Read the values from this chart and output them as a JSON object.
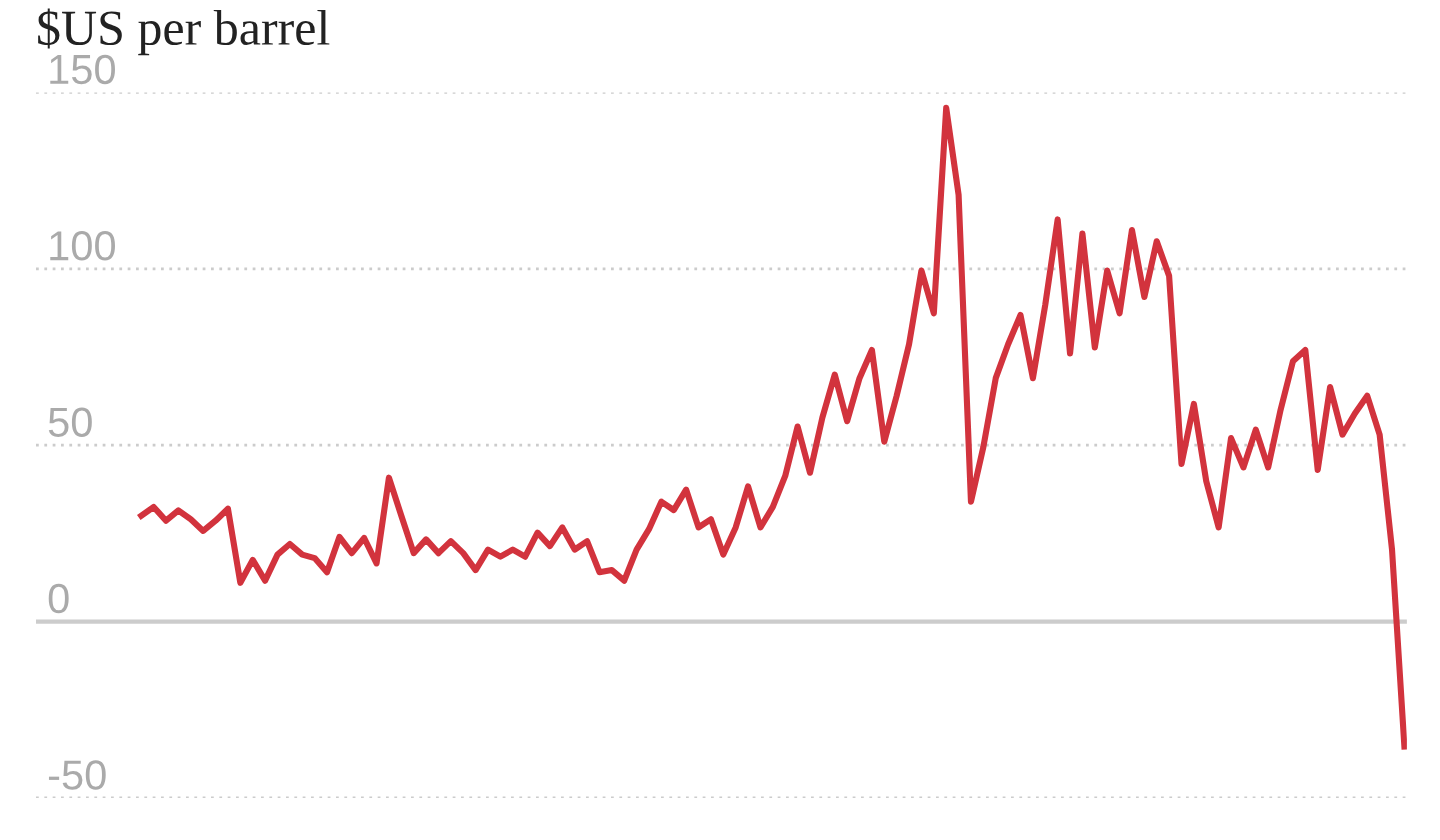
{
  "chart_data": {
    "type": "line",
    "title": "$US per barrel",
    "categories": [
      null,
      null,
      null,
      null,
      null,
      null,
      null,
      null,
      null,
      null,
      null,
      null,
      null,
      null,
      null,
      null,
      null,
      null,
      null,
      null,
      null,
      null,
      null,
      null,
      null,
      null,
      null,
      null,
      null,
      null,
      null,
      null,
      null,
      null,
      null,
      null,
      null,
      null,
      null,
      null,
      null,
      null,
      null,
      null,
      null,
      null,
      null,
      null,
      null,
      null,
      null,
      null,
      null,
      null,
      null,
      null,
      null,
      null,
      null,
      null,
      null,
      null,
      null,
      null,
      null,
      null,
      null,
      null,
      null,
      null,
      null,
      null,
      null,
      null,
      null,
      null,
      null,
      null,
      null,
      null,
      null,
      null,
      null,
      null,
      null,
      null,
      null,
      null,
      null,
      null,
      null,
      null,
      null,
      null,
      null,
      null,
      null,
      null,
      null,
      null,
      null,
      null,
      null
    ],
    "series": [
      {
        "color": "#d2333d",
        "values": [
          30,
          32.5,
          28.6,
          31.5,
          29,
          25.7,
          28.6,
          32,
          11,
          17.5,
          11.6,
          19,
          22,
          19,
          18,
          14,
          24,
          19.4,
          23.7,
          16.5,
          40.8,
          30,
          19.4,
          23.3,
          19.4,
          22.8,
          19.4,
          14.6,
          20.4,
          18.4,
          20.4,
          18.4,
          25.2,
          21.4,
          26.7,
          20.4,
          22.8,
          14,
          14.6,
          11.6,
          20.4,
          26.2,
          34,
          31.6,
          37.4,
          26.7,
          29,
          19,
          26.7,
          38.3,
          26.7,
          32.5,
          41.3,
          55.3,
          42.2,
          57.8,
          70,
          56.8,
          69,
          77,
          51,
          64,
          78.6,
          99.5,
          87.4,
          145.6,
          121,
          34,
          49.5,
          69,
          78.6,
          86.9,
          69,
          89.8,
          114,
          76,
          110,
          77.7,
          99.5,
          87.4,
          111,
          92,
          107.8,
          98,
          44.7,
          61.7,
          39.8,
          26.7,
          52,
          43.7,
          54.4,
          43.7,
          60,
          73.8,
          77,
          43,
          66.5,
          53,
          59,
          64,
          53,
          20.4,
          -35.4
        ]
      }
    ],
    "ylim": [
      -50,
      150
    ],
    "yticks": [
      -50,
      0,
      50,
      100,
      150
    ],
    "grid": "y",
    "legend": false,
    "marker": "none",
    "line_style": "solid",
    "ref_lines": [
      {
        "axis": "y",
        "value": 0,
        "color": "#cccccc",
        "line_style": "solid"
      }
    ]
  }
}
